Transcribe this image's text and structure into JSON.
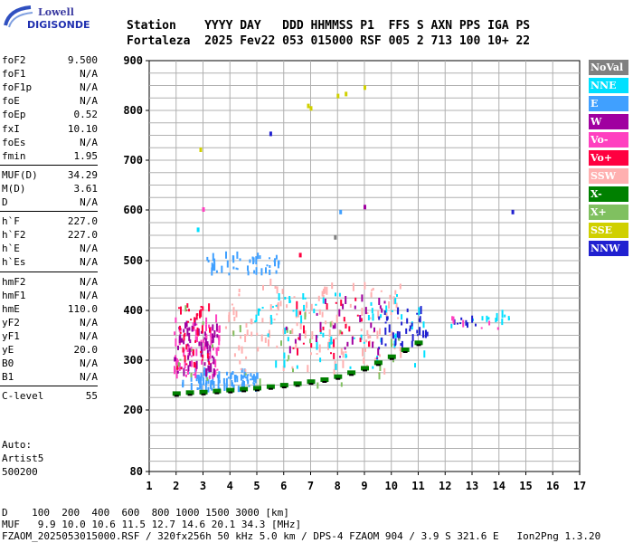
{
  "logo": {
    "line1": "Lowell",
    "line2": "DIGISONDE"
  },
  "header": {
    "row1": "Station    YYYY DAY   DDD HHMMSS P1  FFS S AXN PPS IGA PS",
    "row2": "Fortaleza  2025 Fev22 053 015000 RSF 005 2 713 100 10+ 22"
  },
  "params": {
    "group1": [
      {
        "label": "foF2",
        "value": "9.500"
      },
      {
        "label": "foF1",
        "value": "N/A"
      },
      {
        "label": "foF1p",
        "value": "N/A"
      },
      {
        "label": "foE",
        "value": "N/A"
      },
      {
        "label": "foEp",
        "value": "0.52"
      },
      {
        "label": "fxI",
        "value": "10.10"
      },
      {
        "label": "foEs",
        "value": "N/A"
      },
      {
        "label": "fmin",
        "value": "1.95"
      }
    ],
    "group2": [
      {
        "label": "MUF(D)",
        "value": "34.29"
      },
      {
        "label": "M(D)",
        "value": "3.61"
      },
      {
        "label": "D",
        "value": "N/A"
      }
    ],
    "group3": [
      {
        "label": "h`F",
        "value": "227.0"
      },
      {
        "label": "h`F2",
        "value": "227.0"
      },
      {
        "label": "h`E",
        "value": "N/A"
      },
      {
        "label": "h`Es",
        "value": "N/A"
      }
    ],
    "group4": [
      {
        "label": "hmF2",
        "value": "N/A"
      },
      {
        "label": "hmF1",
        "value": "N/A"
      },
      {
        "label": "hmE",
        "value": "110.0"
      },
      {
        "label": "yF2",
        "value": "N/A"
      },
      {
        "label": "yF1",
        "value": "N/A"
      },
      {
        "label": "yE",
        "value": "20.0"
      },
      {
        "label": "B0",
        "value": "N/A"
      },
      {
        "label": "B1",
        "value": "N/A"
      }
    ],
    "group5": [
      {
        "label": "C-level",
        "value": "55"
      }
    ]
  },
  "auto": {
    "line1": "Auto:",
    "line2": "Artist5",
    "line3": "500200"
  },
  "legend": [
    {
      "label": "NoVal",
      "color": "#808080"
    },
    {
      "label": "NNE",
      "color": "#00e0ff"
    },
    {
      "label": "E",
      "color": "#40a0ff"
    },
    {
      "label": "W",
      "color": "#a000a0"
    },
    {
      "label": "Vo-",
      "color": "#ff40c0"
    },
    {
      "label": "Vo+",
      "color": "#ff0040"
    },
    {
      "label": "SSW",
      "color": "#ffb0b0"
    },
    {
      "label": "X-",
      "color": "#008000"
    },
    {
      "label": "X+",
      "color": "#80c060"
    },
    {
      "label": "SSE",
      "color": "#d0d000"
    },
    {
      "label": "NNW",
      "color": "#2020d0"
    }
  ],
  "footer": {
    "row1": "D    100  200  400  600  800 1000 1500 3000 [km]",
    "row2": "MUF   9.9 10.0 10.6 11.5 12.7 14.6 20.1 34.3 [MHz]",
    "row3": "FZAOM_2025053015000.RSF / 320fx256h 50 kHz 5.0 km / DPS-4 FZAOM 904 / 3.9 S 321.6 E   Ion2Png 1.3.20"
  },
  "chart_data": {
    "type": "scatter",
    "xlim": [
      1,
      17
    ],
    "ylim": [
      80,
      900
    ],
    "xticks": [
      "1",
      "2",
      "3",
      "4",
      "5",
      "6",
      "7",
      "8",
      "9",
      "10",
      "11",
      "12",
      "13",
      "14",
      "15",
      "16",
      "17"
    ],
    "yticks": [
      "80",
      "200",
      "300",
      "400",
      "500",
      "600",
      "700",
      "800",
      "900"
    ],
    "grid": true,
    "trace": {
      "name": "X-",
      "color": "#008000",
      "x": [
        2.0,
        2.5,
        3.0,
        3.5,
        4.0,
        4.5,
        5.0,
        5.5,
        6.0,
        6.5,
        7.0,
        7.5,
        8.0,
        8.5,
        9.0,
        9.5,
        10.0,
        10.5,
        11.0
      ],
      "y": [
        232,
        234,
        235,
        237,
        239,
        241,
        243,
        246,
        249,
        252,
        256,
        260,
        266,
        274,
        283,
        294,
        306,
        320,
        334
      ]
    },
    "clusters": [
      {
        "color": "#40a0ff",
        "x": [
          2.2,
          5.0
        ],
        "y": [
          235,
          275
        ],
        "n": 90
      },
      {
        "color": "#ff40c0",
        "x": [
          1.9,
          3.6
        ],
        "y": [
          260,
          380
        ],
        "n": 80
      },
      {
        "color": "#a000a0",
        "x": [
          1.9,
          3.5
        ],
        "y": [
          265,
          370
        ],
        "n": 60
      },
      {
        "color": "#ff0040",
        "x": [
          2.0,
          3.3
        ],
        "y": [
          280,
          420
        ],
        "n": 40
      },
      {
        "color": "#ffb0b0",
        "x": [
          3.8,
          10.5
        ],
        "y": [
          270,
          450
        ],
        "n": 140
      },
      {
        "color": "#00e0ff",
        "x": [
          4.8,
          11.2
        ],
        "y": [
          280,
          430
        ],
        "n": 70
      },
      {
        "color": "#2020d0",
        "x": [
          9.5,
          11.4
        ],
        "y": [
          320,
          400
        ],
        "n": 40
      },
      {
        "color": "#40a0ff",
        "x": [
          3.0,
          5.8
        ],
        "y": [
          470,
          505
        ],
        "n": 45
      },
      {
        "color": "#80c060",
        "x": [
          1.9,
          10.5
        ],
        "y": [
          240,
          400
        ],
        "n": 30
      },
      {
        "color": "#a000a0",
        "x": [
          6.0,
          10.0
        ],
        "y": [
          300,
          420
        ],
        "n": 30
      },
      {
        "color": "#ff0040",
        "x": [
          6.2,
          9.2
        ],
        "y": [
          300,
          420
        ],
        "n": 25
      },
      {
        "color": "#00e0ff",
        "x": [
          12.2,
          14.6
        ],
        "y": [
          360,
          390
        ],
        "n": 12
      },
      {
        "color": "#2020d0",
        "x": [
          12.2,
          13.2
        ],
        "y": [
          365,
          390
        ],
        "n": 8
      },
      {
        "color": "#ff40c0",
        "x": [
          12.0,
          14.6
        ],
        "y": [
          360,
          385
        ],
        "n": 6
      }
    ],
    "points": [
      {
        "x": 6.9,
        "y": 808,
        "color": "#d0d000"
      },
      {
        "x": 7.0,
        "y": 803,
        "color": "#d0d000"
      },
      {
        "x": 8.3,
        "y": 832,
        "color": "#d0d000"
      },
      {
        "x": 8.0,
        "y": 828,
        "color": "#d0d000"
      },
      {
        "x": 9.0,
        "y": 845,
        "color": "#d0d000"
      },
      {
        "x": 5.5,
        "y": 752,
        "color": "#2020d0"
      },
      {
        "x": 2.9,
        "y": 720,
        "color": "#d0d000"
      },
      {
        "x": 3.0,
        "y": 600,
        "color": "#ff40c0"
      },
      {
        "x": 8.1,
        "y": 595,
        "color": "#40a0ff"
      },
      {
        "x": 9.0,
        "y": 605,
        "color": "#a000a0"
      },
      {
        "x": 14.5,
        "y": 595,
        "color": "#2020d0"
      },
      {
        "x": 2.8,
        "y": 560,
        "color": "#00e0ff"
      },
      {
        "x": 7.9,
        "y": 545,
        "color": "#808080"
      },
      {
        "x": 6.6,
        "y": 510,
        "color": "#ff0040"
      }
    ]
  }
}
